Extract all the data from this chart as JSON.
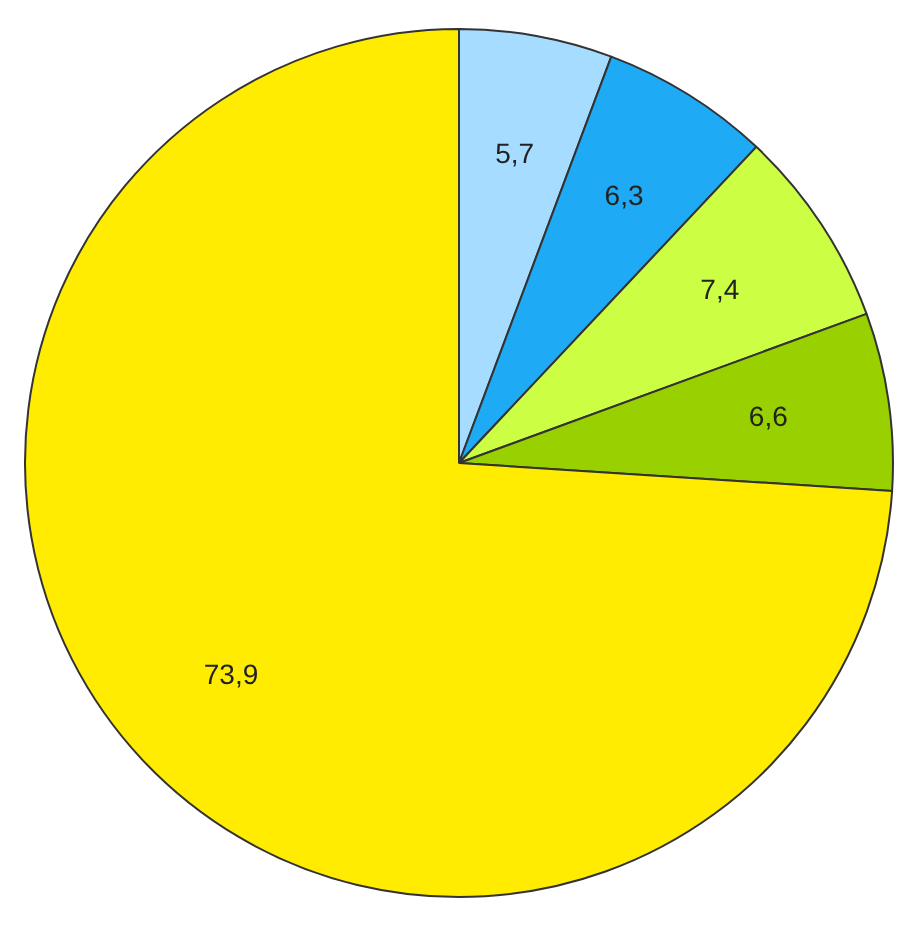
{
  "chart_data": {
    "type": "pie",
    "categories": [
      null,
      null,
      null,
      null,
      null
    ],
    "values": [
      5.7,
      6.3,
      7.4,
      6.6,
      73.9
    ],
    "colors": [
      "#a6dcff",
      "#1eaaf5",
      "#ccff44",
      "#99d000",
      "#ffec00"
    ],
    "value_labels": [
      "5,7",
      "6,3",
      "7,4",
      "6,6",
      "73,9"
    ],
    "legend": false
  }
}
